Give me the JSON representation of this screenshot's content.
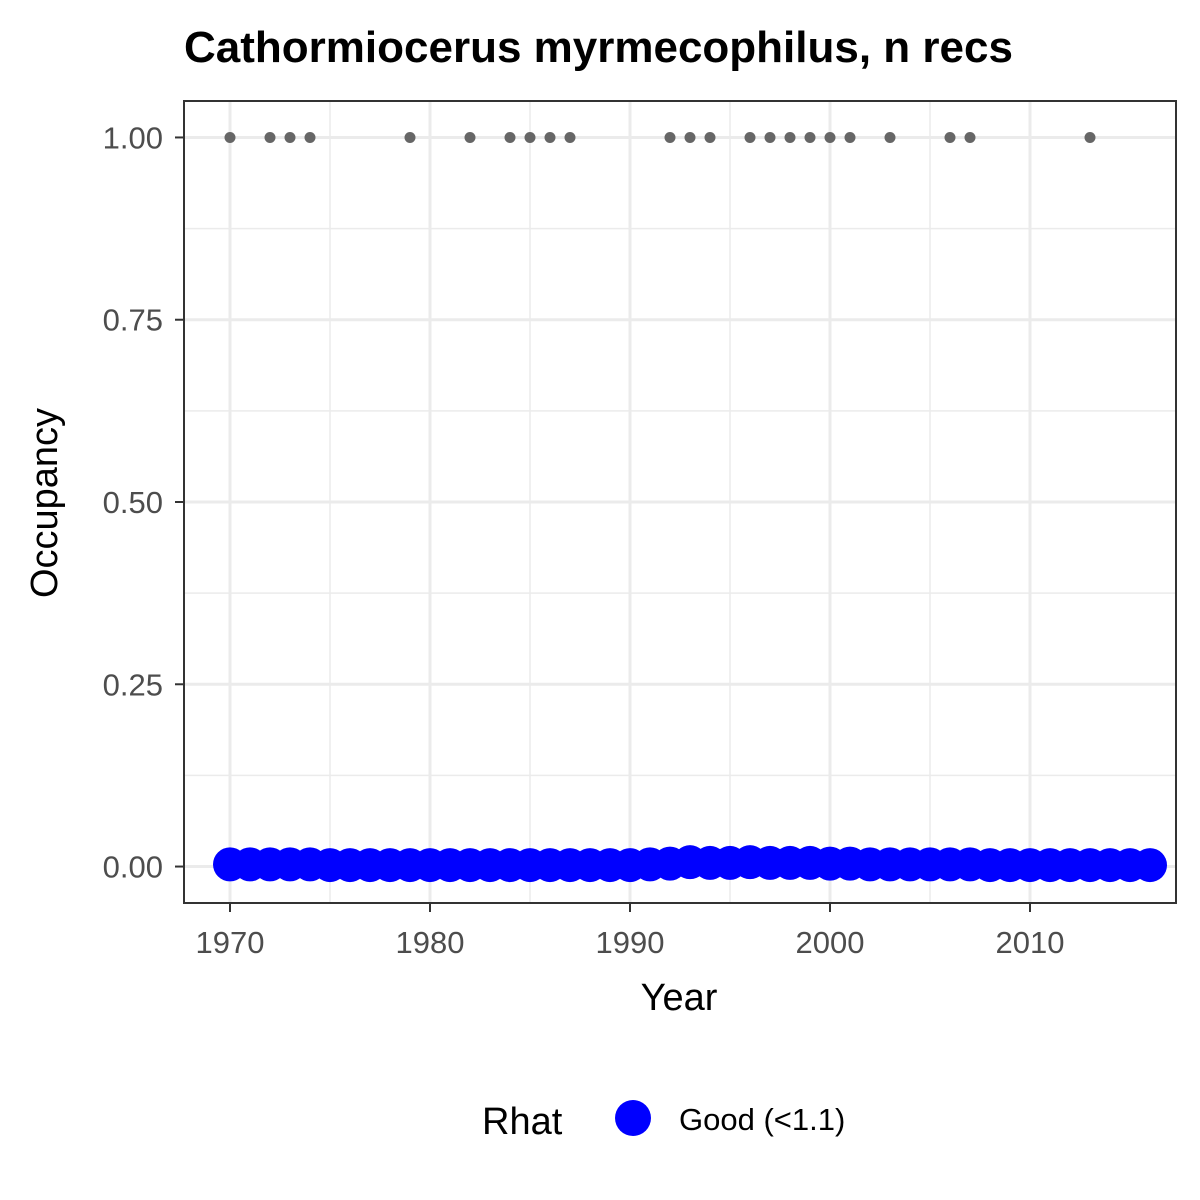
{
  "chart_data": {
    "type": "scatter",
    "title": "Cathormiocerus myrmecophilus, n recs",
    "xlabel": "Year",
    "ylabel": "Occupancy",
    "xlim": [
      1967.7,
      2017.3
    ],
    "ylim": [
      -0.05,
      1.05
    ],
    "x_ticks": [
      1970,
      1980,
      1990,
      2000,
      2010
    ],
    "y_ticks": [
      0.0,
      0.25,
      0.5,
      0.75,
      1.0
    ],
    "x_tick_labels": [
      "1970",
      "1980",
      "1990",
      "2000",
      "2010"
    ],
    "y_tick_labels": [
      "0.00",
      "0.25",
      "0.50",
      "0.75",
      "1.00"
    ],
    "grid": true,
    "legend": {
      "title": "Rhat",
      "position": "bottom",
      "entries": [
        {
          "label": "Good (<1.1)",
          "color": "#0000ff"
        }
      ]
    },
    "series": [
      {
        "kind": "observed_records",
        "color": "#666666",
        "x": [
          1970,
          1972,
          1973,
          1974,
          1979,
          1982,
          1984,
          1985,
          1986,
          1987,
          1992,
          1993,
          1994,
          1996,
          1997,
          1998,
          1999,
          2000,
          2001,
          2003,
          2006,
          2007,
          2013
        ],
        "y": [
          1,
          1,
          1,
          1,
          1,
          1,
          1,
          1,
          1,
          1,
          1,
          1,
          1,
          1,
          1,
          1,
          1,
          1,
          1,
          1,
          1,
          1,
          1
        ]
      },
      {
        "kind": "occupancy_estimate",
        "name": "Good (<1.1)",
        "color": "#0000ff",
        "x": [
          1970,
          1971,
          1972,
          1973,
          1974,
          1975,
          1976,
          1977,
          1978,
          1979,
          1980,
          1981,
          1982,
          1983,
          1984,
          1985,
          1986,
          1987,
          1988,
          1989,
          1990,
          1991,
          1992,
          1993,
          1994,
          1995,
          1996,
          1997,
          1998,
          1999,
          2000,
          2001,
          2002,
          2003,
          2004,
          2005,
          2006,
          2007,
          2008,
          2009,
          2010,
          2011,
          2012,
          2013,
          2014,
          2015,
          2016
        ],
        "y": [
          0.003,
          0.003,
          0.003,
          0.003,
          0.003,
          0.002,
          0.002,
          0.002,
          0.002,
          0.002,
          0.002,
          0.002,
          0.002,
          0.002,
          0.002,
          0.002,
          0.002,
          0.002,
          0.002,
          0.002,
          0.002,
          0.003,
          0.004,
          0.006,
          0.005,
          0.005,
          0.006,
          0.005,
          0.005,
          0.005,
          0.004,
          0.004,
          0.003,
          0.003,
          0.003,
          0.003,
          0.003,
          0.003,
          0.002,
          0.002,
          0.002,
          0.002,
          0.002,
          0.002,
          0.002,
          0.002,
          0.002
        ]
      }
    ]
  }
}
